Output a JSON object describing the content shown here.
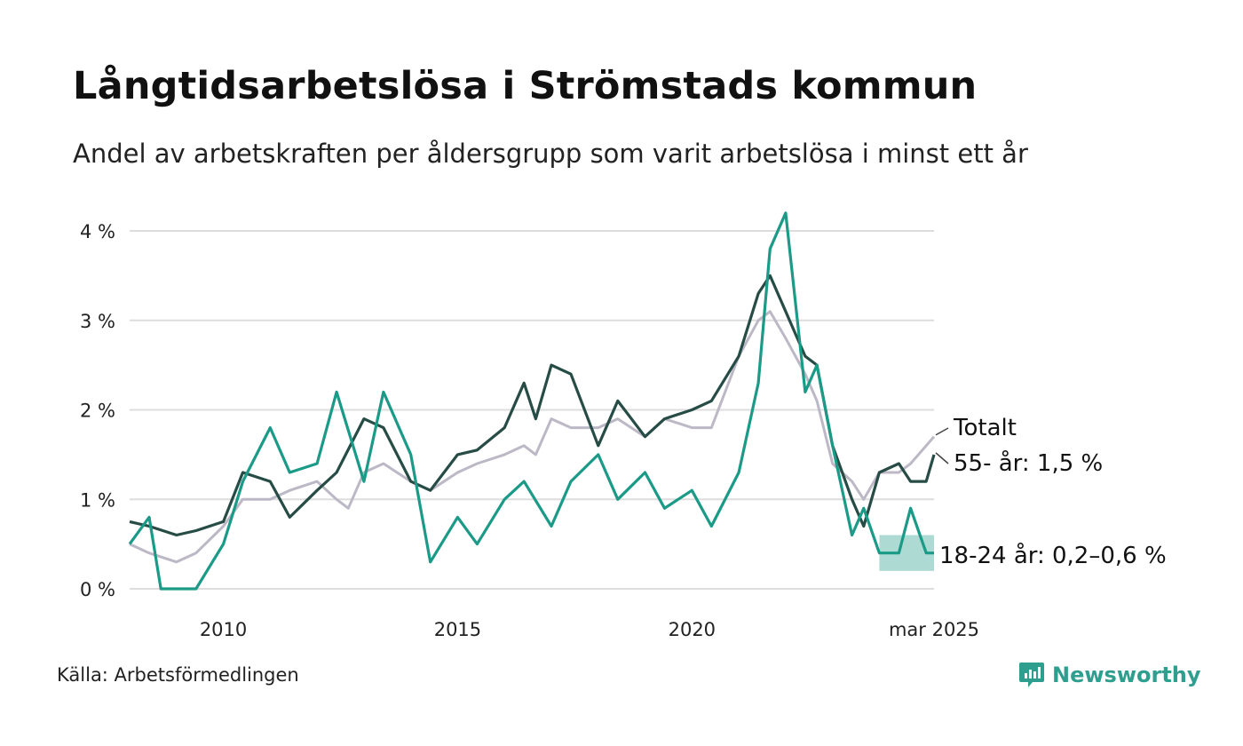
{
  "title": "Långtidsarbetslösa i Strömstads kommun",
  "subtitle": "Andel av arbetskraften per åldersgrupp som varit arbetslösa i minst ett år",
  "source": "Källa: Arbetsförmedlingen",
  "brand": "Newsworthy",
  "colors": {
    "totalt": "#bdb8c6",
    "age55": "#264c45",
    "age18_24": "#1a9a87",
    "band": "#9fd3ca",
    "grid": "#dddddd",
    "brand": "#2e9e8f"
  },
  "chart_data": {
    "type": "line",
    "x_range": [
      "2008-01",
      "2025-03"
    ],
    "ylim": [
      0,
      4.2
    ],
    "y_ticks": [
      {
        "value": 0,
        "label": "0 %"
      },
      {
        "value": 1,
        "label": "1 %"
      },
      {
        "value": 2,
        "label": "2 %"
      },
      {
        "value": 3,
        "label": "3 %"
      },
      {
        "value": 4,
        "label": "4 %"
      }
    ],
    "x_ticks": [
      {
        "date": "2010-01",
        "label": "2010"
      },
      {
        "date": "2015-01",
        "label": "2015"
      },
      {
        "date": "2020-01",
        "label": "2020"
      },
      {
        "date": "2025-03",
        "label": "mar 2025"
      }
    ],
    "grid": true,
    "series": [
      {
        "key": "totalt",
        "name": "Totalt",
        "end_label": "Totalt",
        "points": [
          [
            "2008-01",
            0.5
          ],
          [
            "2008-06",
            0.4
          ],
          [
            "2009-01",
            0.3
          ],
          [
            "2009-06",
            0.4
          ],
          [
            "2010-01",
            0.7
          ],
          [
            "2010-06",
            1.0
          ],
          [
            "2011-01",
            1.0
          ],
          [
            "2011-06",
            1.1
          ],
          [
            "2012-01",
            1.2
          ],
          [
            "2012-06",
            1.0
          ],
          [
            "2012-09",
            0.9
          ],
          [
            "2013-01",
            1.3
          ],
          [
            "2013-06",
            1.4
          ],
          [
            "2014-01",
            1.2
          ],
          [
            "2014-06",
            1.1
          ],
          [
            "2015-01",
            1.3
          ],
          [
            "2015-06",
            1.4
          ],
          [
            "2016-01",
            1.5
          ],
          [
            "2016-06",
            1.6
          ],
          [
            "2016-09",
            1.5
          ],
          [
            "2017-01",
            1.9
          ],
          [
            "2017-06",
            1.8
          ],
          [
            "2018-01",
            1.8
          ],
          [
            "2018-06",
            1.9
          ],
          [
            "2019-01",
            1.7
          ],
          [
            "2019-06",
            1.9
          ],
          [
            "2020-01",
            1.8
          ],
          [
            "2020-06",
            1.8
          ],
          [
            "2021-01",
            2.6
          ],
          [
            "2021-06",
            3.0
          ],
          [
            "2021-09",
            3.1
          ],
          [
            "2022-01",
            2.8
          ],
          [
            "2022-06",
            2.4
          ],
          [
            "2022-09",
            2.1
          ],
          [
            "2023-01",
            1.4
          ],
          [
            "2023-06",
            1.2
          ],
          [
            "2023-09",
            1.0
          ],
          [
            "2024-01",
            1.3
          ],
          [
            "2024-06",
            1.3
          ],
          [
            "2024-09",
            1.4
          ],
          [
            "2025-01",
            1.6
          ],
          [
            "2025-03",
            1.7
          ]
        ]
      },
      {
        "key": "age55",
        "name": "55- år",
        "end_label": "55- år: 1,5 %",
        "points": [
          [
            "2008-01",
            0.75
          ],
          [
            "2008-06",
            0.7
          ],
          [
            "2009-01",
            0.6
          ],
          [
            "2009-06",
            0.65
          ],
          [
            "2010-01",
            0.75
          ],
          [
            "2010-06",
            1.3
          ],
          [
            "2011-01",
            1.2
          ],
          [
            "2011-06",
            0.8
          ],
          [
            "2012-01",
            1.1
          ],
          [
            "2012-06",
            1.3
          ],
          [
            "2013-01",
            1.9
          ],
          [
            "2013-06",
            1.8
          ],
          [
            "2014-01",
            1.2
          ],
          [
            "2014-06",
            1.1
          ],
          [
            "2015-01",
            1.5
          ],
          [
            "2015-06",
            1.55
          ],
          [
            "2016-01",
            1.8
          ],
          [
            "2016-06",
            2.3
          ],
          [
            "2016-09",
            1.9
          ],
          [
            "2017-01",
            2.5
          ],
          [
            "2017-06",
            2.4
          ],
          [
            "2018-01",
            1.6
          ],
          [
            "2018-06",
            2.1
          ],
          [
            "2019-01",
            1.7
          ],
          [
            "2019-06",
            1.9
          ],
          [
            "2020-01",
            2.0
          ],
          [
            "2020-06",
            2.1
          ],
          [
            "2021-01",
            2.6
          ],
          [
            "2021-06",
            3.3
          ],
          [
            "2021-09",
            3.5
          ],
          [
            "2022-01",
            3.1
          ],
          [
            "2022-06",
            2.6
          ],
          [
            "2022-09",
            2.5
          ],
          [
            "2023-01",
            1.6
          ],
          [
            "2023-06",
            1.0
          ],
          [
            "2023-09",
            0.7
          ],
          [
            "2024-01",
            1.3
          ],
          [
            "2024-06",
            1.4
          ],
          [
            "2024-09",
            1.2
          ],
          [
            "2025-01",
            1.2
          ],
          [
            "2025-03",
            1.5
          ]
        ]
      },
      {
        "key": "age18_24",
        "name": "18-24 år",
        "end_label": "18-24 år: 0,2–0,6 %",
        "points": [
          [
            "2008-01",
            0.5
          ],
          [
            "2008-06",
            0.8
          ],
          [
            "2008-09",
            0.0
          ],
          [
            "2009-06",
            0.0
          ],
          [
            "2010-01",
            0.5
          ],
          [
            "2010-06",
            1.2
          ],
          [
            "2011-01",
            1.8
          ],
          [
            "2011-06",
            1.3
          ],
          [
            "2012-01",
            1.4
          ],
          [
            "2012-06",
            2.2
          ],
          [
            "2013-01",
            1.2
          ],
          [
            "2013-06",
            2.2
          ],
          [
            "2014-01",
            1.5
          ],
          [
            "2014-06",
            0.3
          ],
          [
            "2015-01",
            0.8
          ],
          [
            "2015-06",
            0.5
          ],
          [
            "2016-01",
            1.0
          ],
          [
            "2016-06",
            1.2
          ],
          [
            "2017-01",
            0.7
          ],
          [
            "2017-06",
            1.2
          ],
          [
            "2018-01",
            1.5
          ],
          [
            "2018-06",
            1.0
          ],
          [
            "2019-01",
            1.3
          ],
          [
            "2019-06",
            0.9
          ],
          [
            "2020-01",
            1.1
          ],
          [
            "2020-06",
            0.7
          ],
          [
            "2021-01",
            1.3
          ],
          [
            "2021-06",
            2.3
          ],
          [
            "2021-09",
            3.8
          ],
          [
            "2022-01",
            4.2
          ],
          [
            "2022-06",
            2.2
          ],
          [
            "2022-09",
            2.5
          ],
          [
            "2023-01",
            1.6
          ],
          [
            "2023-06",
            0.6
          ],
          [
            "2023-09",
            0.9
          ],
          [
            "2024-01",
            0.4
          ],
          [
            "2024-06",
            0.4
          ],
          [
            "2024-09",
            0.9
          ],
          [
            "2025-01",
            0.4
          ],
          [
            "2025-03",
            0.4
          ]
        ],
        "band": {
          "from": "2024-01",
          "to": "2025-03",
          "low": 0.2,
          "high": 0.6
        }
      }
    ]
  }
}
